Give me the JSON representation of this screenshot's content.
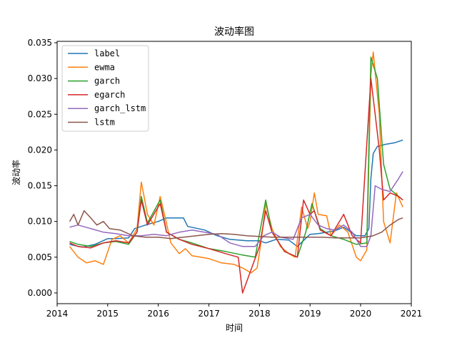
{
  "chart_data": {
    "type": "line",
    "title": "波动率图",
    "xlabel": "时间",
    "ylabel": "波动率",
    "xlim": [
      "2014-01-01",
      "2021-01-01"
    ],
    "ylim": [
      -0.0015,
      0.0352
    ],
    "x_ticks": [
      "2014",
      "2015",
      "2016",
      "2017",
      "2018",
      "2019",
      "2020",
      "2021"
    ],
    "y_ticks": [
      "0.000",
      "0.005",
      "0.010",
      "0.015",
      "0.020",
      "0.025",
      "0.030",
      "0.035"
    ],
    "grid": false,
    "legend_position": "top-left",
    "series": [
      {
        "name": "label",
        "color": "#1f77b4",
        "points": [
          [
            "2014-04-01",
            0.0068
          ],
          [
            "2014-05-15",
            0.0066
          ],
          [
            "2014-07-01",
            0.0064
          ],
          [
            "2014-10-01",
            0.0068
          ],
          [
            "2015-01-01",
            0.0076
          ],
          [
            "2015-03-01",
            0.0076
          ],
          [
            "2015-06-01",
            0.0077
          ],
          [
            "2015-07-15",
            0.009
          ],
          [
            "2015-10-01",
            0.0095
          ],
          [
            "2016-01-01",
            0.01
          ],
          [
            "2016-03-01",
            0.0105
          ],
          [
            "2016-07-01",
            0.0105
          ],
          [
            "2016-08-01",
            0.0093
          ],
          [
            "2016-12-01",
            0.0088
          ],
          [
            "2017-03-01",
            0.008
          ],
          [
            "2017-06-01",
            0.0075
          ],
          [
            "2017-10-01",
            0.0073
          ],
          [
            "2018-01-01",
            0.0073
          ],
          [
            "2018-02-15",
            0.007
          ],
          [
            "2018-05-01",
            0.0075
          ],
          [
            "2018-08-01",
            0.0074
          ],
          [
            "2018-10-01",
            0.0065
          ],
          [
            "2019-01-01",
            0.0082
          ],
          [
            "2019-03-01",
            0.0083
          ],
          [
            "2019-05-01",
            0.0085
          ],
          [
            "2019-07-01",
            0.0087
          ],
          [
            "2019-09-01",
            0.0092
          ],
          [
            "2019-12-01",
            0.008
          ],
          [
            "2020-02-01",
            0.008
          ],
          [
            "2020-03-01",
            0.009
          ],
          [
            "2020-03-15",
            0.016
          ],
          [
            "2020-04-01",
            0.0195
          ],
          [
            "2020-05-01",
            0.0205
          ],
          [
            "2020-07-01",
            0.0208
          ],
          [
            "2020-09-01",
            0.021
          ],
          [
            "2020-11-01",
            0.0214
          ]
        ]
      },
      {
        "name": "ewma",
        "color": "#ff7f0e",
        "points": [
          [
            "2014-04-01",
            0.0065
          ],
          [
            "2014-06-01",
            0.005
          ],
          [
            "2014-08-01",
            0.0042
          ],
          [
            "2014-10-01",
            0.0045
          ],
          [
            "2014-12-01",
            0.004
          ],
          [
            "2015-02-01",
            0.0075
          ],
          [
            "2015-04-01",
            0.008
          ],
          [
            "2015-06-01",
            0.007
          ],
          [
            "2015-08-01",
            0.009
          ],
          [
            "2015-09-01",
            0.0155
          ],
          [
            "2015-10-15",
            0.011
          ],
          [
            "2015-12-01",
            0.0095
          ],
          [
            "2016-01-15",
            0.0135
          ],
          [
            "2016-02-15",
            0.011
          ],
          [
            "2016-04-01",
            0.007
          ],
          [
            "2016-06-01",
            0.0055
          ],
          [
            "2016-07-15",
            0.0062
          ],
          [
            "2016-09-01",
            0.0052
          ],
          [
            "2016-11-01",
            0.005
          ],
          [
            "2017-01-01",
            0.0048
          ],
          [
            "2017-04-01",
            0.0042
          ],
          [
            "2017-07-01",
            0.004
          ],
          [
            "2017-09-01",
            0.0035
          ],
          [
            "2017-11-01",
            0.0028
          ],
          [
            "2017-12-15",
            0.0035
          ],
          [
            "2018-01-15",
            0.0075
          ],
          [
            "2018-02-15",
            0.0125
          ],
          [
            "2018-04-01",
            0.009
          ],
          [
            "2018-06-01",
            0.0065
          ],
          [
            "2018-08-01",
            0.0055
          ],
          [
            "2018-09-15",
            0.005
          ],
          [
            "2018-11-01",
            0.012
          ],
          [
            "2018-12-15",
            0.009
          ],
          [
            "2019-01-01",
            0.01
          ],
          [
            "2019-02-01",
            0.014
          ],
          [
            "2019-03-01",
            0.011
          ],
          [
            "2019-05-01",
            0.0108
          ],
          [
            "2019-06-01",
            0.008
          ],
          [
            "2019-08-01",
            0.0095
          ],
          [
            "2019-10-01",
            0.0085
          ],
          [
            "2019-12-01",
            0.005
          ],
          [
            "2020-01-01",
            0.0045
          ],
          [
            "2020-02-15",
            0.006
          ],
          [
            "2020-03-15",
            0.0305
          ],
          [
            "2020-04-01",
            0.0337
          ],
          [
            "2020-05-15",
            0.025
          ],
          [
            "2020-06-15",
            0.01
          ],
          [
            "2020-08-01",
            0.007
          ],
          [
            "2020-09-15",
            0.014
          ],
          [
            "2020-11-01",
            0.012
          ]
        ]
      },
      {
        "name": "garch",
        "color": "#2ca02c",
        "points": [
          [
            "2014-04-01",
            0.0072
          ],
          [
            "2014-06-01",
            0.0068
          ],
          [
            "2014-09-01",
            0.0065
          ],
          [
            "2014-12-01",
            0.007
          ],
          [
            "2015-03-01",
            0.0072
          ],
          [
            "2015-06-01",
            0.0068
          ],
          [
            "2015-08-01",
            0.0085
          ],
          [
            "2015-09-01",
            0.0135
          ],
          [
            "2015-10-15",
            0.0098
          ],
          [
            "2016-01-15",
            0.013
          ],
          [
            "2016-03-01",
            0.0085
          ],
          [
            "2016-06-01",
            0.0075
          ],
          [
            "2016-09-01",
            0.007
          ],
          [
            "2017-01-01",
            0.0062
          ],
          [
            "2017-05-01",
            0.0058
          ],
          [
            "2017-09-01",
            0.0053
          ],
          [
            "2017-12-01",
            0.005
          ],
          [
            "2018-02-15",
            0.013
          ],
          [
            "2018-04-01",
            0.0085
          ],
          [
            "2018-07-01",
            0.0058
          ],
          [
            "2018-10-01",
            0.005
          ],
          [
            "2018-12-01",
            0.0085
          ],
          [
            "2019-01-15",
            0.0125
          ],
          [
            "2019-03-15",
            0.009
          ],
          [
            "2019-06-01",
            0.008
          ],
          [
            "2019-09-01",
            0.0075
          ],
          [
            "2019-12-01",
            0.0068
          ],
          [
            "2020-02-15",
            0.007
          ],
          [
            "2020-03-15",
            0.033
          ],
          [
            "2020-05-01",
            0.03
          ],
          [
            "2020-06-15",
            0.018
          ],
          [
            "2020-08-01",
            0.0145
          ],
          [
            "2020-11-01",
            0.013
          ]
        ]
      },
      {
        "name": "egarch",
        "color": "#d62728",
        "points": [
          [
            "2014-04-01",
            0.007
          ],
          [
            "2014-06-01",
            0.0065
          ],
          [
            "2014-09-01",
            0.0063
          ],
          [
            "2014-12-01",
            0.007
          ],
          [
            "2015-03-01",
            0.0073
          ],
          [
            "2015-06-01",
            0.007
          ],
          [
            "2015-08-01",
            0.0085
          ],
          [
            "2015-09-01",
            0.013
          ],
          [
            "2015-10-15",
            0.0095
          ],
          [
            "2016-01-15",
            0.0125
          ],
          [
            "2016-03-01",
            0.0085
          ],
          [
            "2016-06-01",
            0.0075
          ],
          [
            "2016-09-01",
            0.0068
          ],
          [
            "2017-01-01",
            0.0062
          ],
          [
            "2017-05-01",
            0.0055
          ],
          [
            "2017-08-01",
            0.005
          ],
          [
            "2017-09-01",
            0.0
          ],
          [
            "2017-11-15",
            0.004
          ],
          [
            "2018-01-01",
            0.0065
          ],
          [
            "2018-02-15",
            0.0115
          ],
          [
            "2018-04-01",
            0.0085
          ],
          [
            "2018-07-01",
            0.0058
          ],
          [
            "2018-10-01",
            0.005
          ],
          [
            "2018-11-15",
            0.013
          ],
          [
            "2019-01-01",
            0.011
          ],
          [
            "2019-02-01",
            0.0115
          ],
          [
            "2019-03-15",
            0.0088
          ],
          [
            "2019-06-01",
            0.008
          ],
          [
            "2019-09-01",
            0.011
          ],
          [
            "2019-11-01",
            0.008
          ],
          [
            "2020-01-01",
            0.007
          ],
          [
            "2020-03-15",
            0.03
          ],
          [
            "2020-04-15",
            0.025
          ],
          [
            "2020-05-15",
            0.02
          ],
          [
            "2020-06-15",
            0.013
          ],
          [
            "2020-08-01",
            0.014
          ],
          [
            "2020-10-01",
            0.0135
          ],
          [
            "2020-11-01",
            0.013
          ]
        ]
      },
      {
        "name": "garch_lstm",
        "color": "#9467bd",
        "points": [
          [
            "2014-04-01",
            0.0092
          ],
          [
            "2014-06-01",
            0.0095
          ],
          [
            "2014-09-01",
            0.009
          ],
          [
            "2014-12-01",
            0.0085
          ],
          [
            "2015-03-01",
            0.0083
          ],
          [
            "2015-06-01",
            0.008
          ],
          [
            "2015-09-01",
            0.008
          ],
          [
            "2015-12-01",
            0.0082
          ],
          [
            "2016-03-01",
            0.008
          ],
          [
            "2016-06-01",
            0.0085
          ],
          [
            "2016-09-01",
            0.0088
          ],
          [
            "2016-12-01",
            0.0085
          ],
          [
            "2017-03-01",
            0.0082
          ],
          [
            "2017-06-01",
            0.007
          ],
          [
            "2017-09-01",
            0.0065
          ],
          [
            "2017-12-01",
            0.0065
          ],
          [
            "2018-02-01",
            0.008
          ],
          [
            "2018-04-01",
            0.0085
          ],
          [
            "2018-06-01",
            0.0078
          ],
          [
            "2018-09-01",
            0.0075
          ],
          [
            "2018-11-01",
            0.0105
          ],
          [
            "2019-01-01",
            0.011
          ],
          [
            "2019-03-01",
            0.0095
          ],
          [
            "2019-05-01",
            0.009
          ],
          [
            "2019-07-01",
            0.0088
          ],
          [
            "2019-09-01",
            0.0095
          ],
          [
            "2019-11-01",
            0.0085
          ],
          [
            "2020-01-01",
            0.0065
          ],
          [
            "2020-02-15",
            0.0065
          ],
          [
            "2020-03-15",
            0.008
          ],
          [
            "2020-04-15",
            0.015
          ],
          [
            "2020-06-01",
            0.0145
          ],
          [
            "2020-08-01",
            0.0142
          ],
          [
            "2020-10-01",
            0.016
          ],
          [
            "2020-11-01",
            0.017
          ]
        ]
      },
      {
        "name": "lstm",
        "color": "#8c564b",
        "points": [
          [
            "2014-04-01",
            0.01
          ],
          [
            "2014-05-01",
            0.011
          ],
          [
            "2014-06-01",
            0.0095
          ],
          [
            "2014-07-15",
            0.0115
          ],
          [
            "2014-09-01",
            0.0105
          ],
          [
            "2014-10-15",
            0.0095
          ],
          [
            "2014-12-01",
            0.01
          ],
          [
            "2015-01-15",
            0.009
          ],
          [
            "2015-04-01",
            0.0088
          ],
          [
            "2015-07-01",
            0.008
          ],
          [
            "2015-10-01",
            0.0078
          ],
          [
            "2016-01-01",
            0.0078
          ],
          [
            "2016-04-01",
            0.0076
          ],
          [
            "2016-07-01",
            0.0078
          ],
          [
            "2016-10-01",
            0.008
          ],
          [
            "2017-01-01",
            0.0082
          ],
          [
            "2017-04-01",
            0.0083
          ],
          [
            "2017-07-01",
            0.0082
          ],
          [
            "2017-10-01",
            0.008
          ],
          [
            "2018-01-01",
            0.0079
          ],
          [
            "2018-04-01",
            0.0078
          ],
          [
            "2018-07-01",
            0.0078
          ],
          [
            "2018-10-01",
            0.0078
          ],
          [
            "2019-01-01",
            0.0078
          ],
          [
            "2019-04-01",
            0.0078
          ],
          [
            "2019-07-01",
            0.0077
          ],
          [
            "2019-10-01",
            0.0077
          ],
          [
            "2020-01-01",
            0.0077
          ],
          [
            "2020-04-01",
            0.008
          ],
          [
            "2020-06-01",
            0.0085
          ],
          [
            "2020-08-01",
            0.0095
          ],
          [
            "2020-10-01",
            0.0103
          ],
          [
            "2020-11-01",
            0.0105
          ]
        ]
      }
    ]
  }
}
